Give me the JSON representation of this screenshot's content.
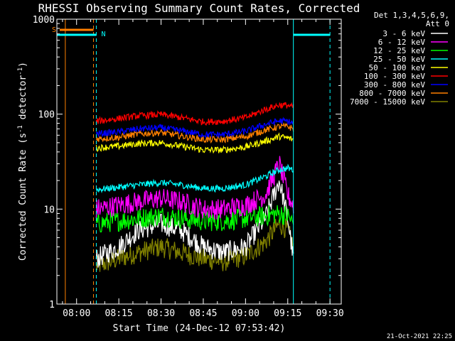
{
  "chart_data": {
    "type": "line",
    "title": "RHESSI Observing Summary Count Rates, Corrected",
    "xlabel": "Start Time (24-Dec-12 07:53:42)",
    "ylabel_main": "Corrected Count Rate (s",
    "ylabel_sup1": "-1",
    "ylabel_mid": " detector",
    "ylabel_sup2": "-1",
    "ylabel_end": ")",
    "y_scale": "log",
    "ylim": [
      1,
      1000
    ],
    "y_ticks": [
      {
        "value": 1,
        "label": "1"
      },
      {
        "value": 10,
        "label": "10"
      },
      {
        "value": 100,
        "label": "100"
      },
      {
        "value": 1000,
        "label": "1000"
      }
    ],
    "x_range": [
      "07:53",
      "09:34"
    ],
    "x_ticks": [
      "08:00",
      "08:15",
      "08:30",
      "08:45",
      "09:00",
      "09:15",
      "09:30"
    ],
    "legend_header": [
      "Det 1,3,4,5,6,9,",
      "Att 0"
    ],
    "legend_position": "right",
    "annotations": {
      "saa_label": "S",
      "night_label": "N",
      "footer_timestamp": "21-Oct-2021 22:25"
    },
    "markers": {
      "saa_lines": [
        "07:56",
        "08:06"
      ],
      "night_lines": [
        "07:53",
        "08:07",
        "09:17",
        "09:30"
      ],
      "saa_bar": [
        "07:54",
        "08:06"
      ],
      "night_bars": [
        [
          "07:53",
          "08:07"
        ],
        [
          "09:17",
          "09:30"
        ]
      ]
    },
    "x": [
      "08:07",
      "08:15",
      "08:22",
      "08:30",
      "08:37",
      "08:45",
      "08:52",
      "09:00",
      "09:07",
      "09:12",
      "09:15",
      "09:17"
    ],
    "series": [
      {
        "name": "3 - 6 keV",
        "color": "#ffffff",
        "values": [
          3,
          4,
          6,
          7,
          6,
          4,
          3.5,
          4,
          8,
          20,
          8,
          3
        ]
      },
      {
        "name": "6 - 12 keV",
        "color": "#ff00ff",
        "values": [
          10,
          11,
          12,
          13,
          12,
          10,
          10,
          11,
          14,
          30,
          14,
          11
        ]
      },
      {
        "name": "12 - 25 keV",
        "color": "#00ff00",
        "values": [
          7,
          7.5,
          8,
          8.5,
          8,
          7.5,
          7.5,
          8,
          8.5,
          9,
          8.5,
          7
        ]
      },
      {
        "name": "25 - 50 keV",
        "color": "#00ffff",
        "values": [
          16,
          17,
          18,
          19,
          18,
          16.5,
          16.5,
          18,
          22,
          26,
          27,
          26
        ]
      },
      {
        "name": "50 - 100 keV",
        "color": "#ffff00",
        "values": [
          44,
          46,
          49,
          50,
          46,
          42,
          42,
          45,
          52,
          58,
          56,
          54
        ]
      },
      {
        "name": "100 - 300 keV",
        "color": "#ff0000",
        "values": [
          84,
          90,
          96,
          99,
          92,
          83,
          84,
          92,
          112,
          125,
          124,
          118
        ]
      },
      {
        "name": "300 - 800 keV",
        "color": "#0000ff",
        "values": [
          62,
          65,
          70,
          72,
          67,
          61,
          61,
          66,
          78,
          85,
          84,
          80
        ]
      },
      {
        "name": "800 - 7000 keV",
        "color": "#ff8000",
        "values": [
          55,
          57,
          62,
          64,
          59,
          54,
          54,
          58,
          68,
          74,
          74,
          70
        ]
      },
      {
        "name": "7000 - 15000 keV",
        "color": "#808000",
        "values": [
          2.5,
          3,
          3.5,
          4,
          3.5,
          3,
          2.8,
          3.2,
          4.5,
          7,
          6,
          4
        ]
      }
    ]
  }
}
